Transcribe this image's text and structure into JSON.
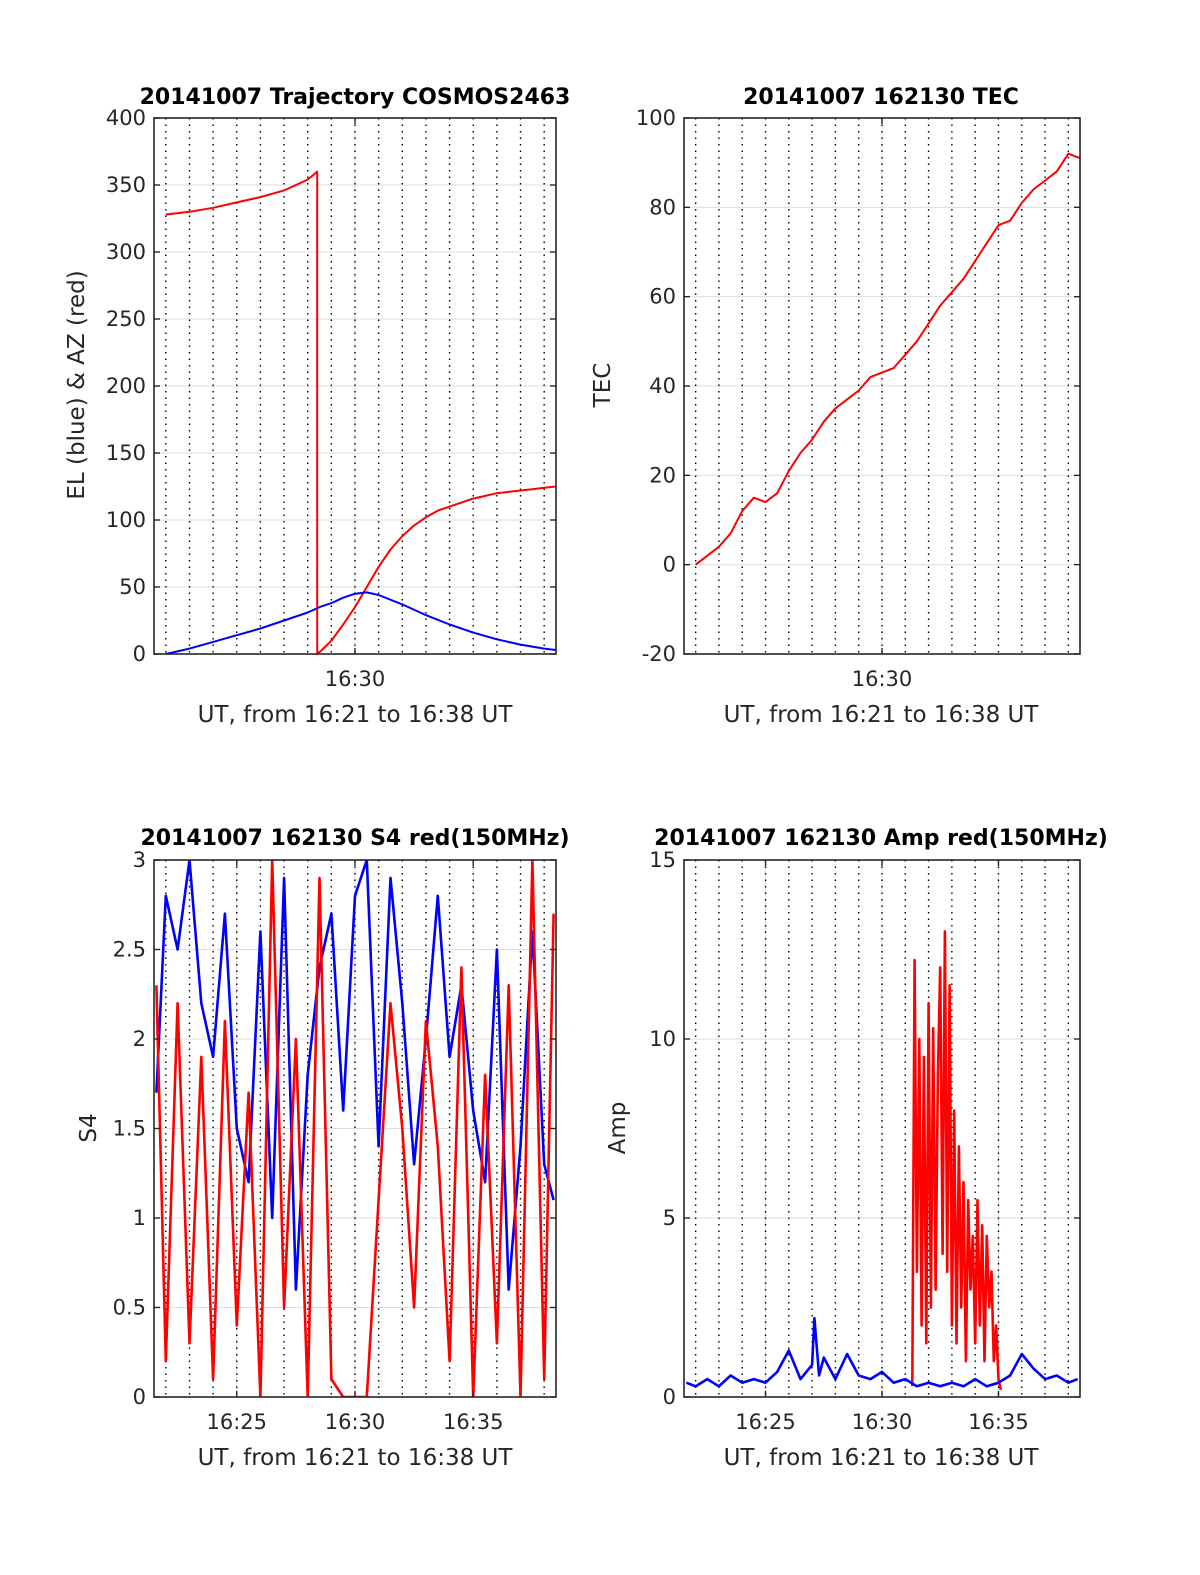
{
  "figure": {
    "colors": {
      "red": "#ff0000",
      "blue": "#0000ff",
      "grid": "#dedede",
      "axis": "#262626"
    }
  },
  "chart_data": [
    {
      "type": "line",
      "title": "20141007 Trajectory COSMOS2463",
      "xlabel": "UT, from 16:21 to 16:38 UT",
      "ylabel": "EL (blue) & AZ (red)",
      "xlim_minutes": [
        981.5,
        998.5
      ],
      "ylim": [
        0,
        400
      ],
      "yticks": [
        0,
        50,
        100,
        150,
        200,
        250,
        300,
        350,
        400
      ],
      "yticklabels": [
        "0",
        "50",
        "100",
        "150",
        "200",
        "250",
        "300",
        "350",
        "400"
      ],
      "xticks_minutes": [
        990
      ],
      "xticklabels": [
        "16:30"
      ],
      "grid": true,
      "series": [
        {
          "color": "red",
          "x": [
            982,
            983,
            984,
            985,
            986,
            987,
            988,
            988.4,
            988.4,
            988.6,
            989,
            989.5,
            990,
            990.5,
            991,
            991.5,
            992,
            992.5,
            993,
            993.5,
            994,
            994.5,
            995,
            995.5,
            996,
            996.5,
            997,
            997.5,
            998,
            998.5
          ],
          "y": [
            328,
            330,
            333,
            337,
            341,
            346,
            354,
            360,
            0,
            3,
            10,
            22,
            35,
            50,
            65,
            78,
            88,
            96,
            102,
            107,
            110,
            113,
            116,
            118,
            120,
            121,
            122,
            123,
            124,
            125
          ]
        },
        {
          "color": "blue",
          "x": [
            982,
            983,
            984,
            985,
            986,
            987,
            988,
            988.5,
            989,
            989.5,
            990,
            990.5,
            991,
            992,
            993,
            994,
            995,
            996,
            997,
            998,
            998.5
          ],
          "y": [
            0,
            4,
            9,
            14,
            19,
            25,
            31,
            35,
            38,
            42,
            45,
            46,
            44,
            37,
            29,
            22,
            16,
            11,
            7,
            4,
            3
          ]
        }
      ]
    },
    {
      "type": "line",
      "title": "20141007 162130 TEC",
      "xlabel": "UT, from 16:21 to 16:38 UT",
      "ylabel": "TEC",
      "xlim_minutes": [
        981.5,
        998.5
      ],
      "ylim": [
        -20,
        100
      ],
      "yticks": [
        -20,
        0,
        20,
        40,
        60,
        80,
        100
      ],
      "yticklabels": [
        "-20",
        "0",
        "20",
        "40",
        "60",
        "80",
        "100"
      ],
      "xticks_minutes": [
        990
      ],
      "xticklabels": [
        "16:30"
      ],
      "grid": true,
      "series": [
        {
          "color": "red",
          "x": [
            982,
            982.5,
            983,
            983.5,
            984,
            984.5,
            985,
            985.5,
            986,
            986.5,
            987,
            987.5,
            988,
            988.5,
            989,
            989.5,
            990,
            990.5,
            991,
            991.5,
            992,
            992.5,
            993,
            993.5,
            994,
            994.5,
            995,
            995.5,
            996,
            996.5,
            997,
            997.5,
            998,
            998.5
          ],
          "y": [
            0,
            2,
            4,
            7,
            12,
            15,
            14,
            16,
            21,
            25,
            28,
            32,
            35,
            37,
            39,
            42,
            43,
            44,
            47,
            50,
            54,
            58,
            61,
            64,
            68,
            72,
            76,
            77,
            81,
            84,
            86,
            88,
            92,
            91
          ]
        }
      ]
    },
    {
      "type": "line",
      "title": "20141007 162130 S4 red(150MHz)",
      "xlabel": "UT, from 16:21 to 16:38 UT",
      "ylabel": "S4",
      "xlim_minutes": [
        981.5,
        998.5
      ],
      "ylim": [
        0,
        3
      ],
      "yticks": [
        0,
        0.5,
        1,
        1.5,
        2,
        2.5,
        3
      ],
      "yticklabels": [
        "0",
        "0.5",
        "1",
        "1.5",
        "2",
        "2.5",
        "3"
      ],
      "xticks_minutes": [
        985,
        990,
        995
      ],
      "xticklabels": [
        "16:25",
        "16:30",
        "16:35"
      ],
      "grid": true,
      "series": [
        {
          "color": "blue",
          "x": [
            981.6,
            982,
            982.5,
            983,
            983.5,
            984,
            984.5,
            985,
            985.5,
            986,
            986.5,
            987,
            987.5,
            988,
            988.5,
            989,
            989.5,
            990,
            990.5,
            991,
            991.5,
            992,
            992.5,
            993,
            993.5,
            994,
            994.5,
            995,
            995.5,
            996,
            996.5,
            997,
            997.5,
            998,
            998.4
          ],
          "y": [
            1.7,
            2.8,
            2.5,
            3.0,
            2.2,
            1.9,
            2.7,
            1.5,
            1.2,
            2.6,
            1.0,
            2.9,
            0.6,
            1.8,
            2.4,
            2.7,
            1.6,
            2.8,
            3.0,
            1.4,
            2.9,
            2.2,
            1.3,
            2.0,
            2.8,
            1.9,
            2.3,
            1.6,
            1.2,
            2.5,
            0.6,
            1.4,
            2.6,
            1.3,
            1.1
          ]
        },
        {
          "color": "red",
          "x": [
            981.6,
            982,
            982.5,
            983,
            983.5,
            984,
            984.5,
            985,
            985.5,
            986,
            986.5,
            987,
            987.5,
            988,
            988.5,
            989,
            989.5,
            990,
            990.5,
            991,
            991.5,
            992,
            992.5,
            993,
            993.5,
            994,
            994.5,
            995,
            995.5,
            996,
            996.5,
            997,
            997.5,
            998,
            998.4
          ],
          "y": [
            2.3,
            0.2,
            2.2,
            0.3,
            1.9,
            0.1,
            2.1,
            0.4,
            1.7,
            0.0,
            3.0,
            0.5,
            2.0,
            0.0,
            2.9,
            0.1,
            0.0,
            0.0,
            0.0,
            1.1,
            2.2,
            1.5,
            0.5,
            2.1,
            1.4,
            0.2,
            2.4,
            0.0,
            1.8,
            0.3,
            2.3,
            0.0,
            3.0,
            0.1,
            2.7
          ]
        }
      ]
    },
    {
      "type": "line",
      "title": "20141007 162130 Amp red(150MHz)",
      "xlabel": "UT, from 16:21 to 16:38 UT",
      "ylabel": "Amp",
      "xlim_minutes": [
        981.5,
        998.5
      ],
      "ylim": [
        0,
        15
      ],
      "yticks": [
        0,
        5,
        10,
        15
      ],
      "yticklabels": [
        "0",
        "5",
        "10",
        "15"
      ],
      "xticks_minutes": [
        985,
        990,
        995
      ],
      "xticklabels": [
        "16:25",
        "16:30",
        "16:35"
      ],
      "grid": true,
      "series": [
        {
          "color": "red",
          "x": [
            991.3,
            991.4,
            991.5,
            991.6,
            991.7,
            991.8,
            991.9,
            992.0,
            992.1,
            992.2,
            992.3,
            992.4,
            992.5,
            992.6,
            992.7,
            992.8,
            992.9,
            993.0,
            993.1,
            993.2,
            993.3,
            993.4,
            993.5,
            993.6,
            993.7,
            993.8,
            993.9,
            994.0,
            994.1,
            994.2,
            994.3,
            994.4,
            994.5,
            994.6,
            994.7,
            994.8,
            994.9,
            995.0,
            995.1
          ],
          "y": [
            0.3,
            12.2,
            3.5,
            10.0,
            2.0,
            9.5,
            1.5,
            11.0,
            2.5,
            10.3,
            3.0,
            9.0,
            12.0,
            4.0,
            13.0,
            3.5,
            11.5,
            2.0,
            8.0,
            1.5,
            7.0,
            2.5,
            6.0,
            1.0,
            5.5,
            3.0,
            4.5,
            1.5,
            5.5,
            2.0,
            4.8,
            1.0,
            4.5,
            2.5,
            3.5,
            1.0,
            2.0,
            0.5,
            0.2
          ]
        },
        {
          "color": "blue",
          "x": [
            981.6,
            982,
            982.5,
            983,
            983.5,
            984,
            984.5,
            985,
            985.5,
            986,
            986.5,
            987,
            987.1,
            987.3,
            987.5,
            988,
            988.5,
            989,
            989.5,
            990,
            990.5,
            991,
            991.5,
            992,
            992.5,
            993,
            993.5,
            994,
            994.5,
            995,
            995.5,
            996,
            996.5,
            997,
            997.5,
            998,
            998.4
          ],
          "y": [
            0.4,
            0.3,
            0.5,
            0.3,
            0.6,
            0.4,
            0.5,
            0.4,
            0.7,
            1.3,
            0.5,
            0.9,
            2.2,
            0.6,
            1.1,
            0.5,
            1.2,
            0.6,
            0.5,
            0.7,
            0.4,
            0.5,
            0.3,
            0.4,
            0.3,
            0.4,
            0.3,
            0.5,
            0.3,
            0.4,
            0.6,
            1.2,
            0.8,
            0.5,
            0.6,
            0.4,
            0.5
          ]
        }
      ]
    }
  ]
}
